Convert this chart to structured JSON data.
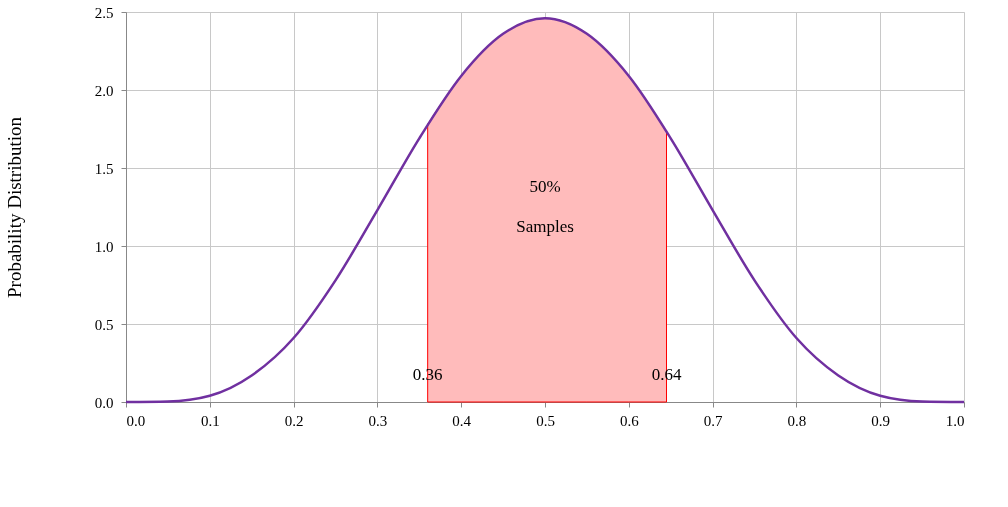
{
  "chart_data": {
    "type": "line",
    "ylabel": "Probability Distribution",
    "x": [
      0,
      0.05,
      0.1,
      0.15,
      0.2,
      0.25,
      0.3,
      0.35,
      0.4,
      0.45,
      0.5,
      0.55,
      0.6,
      0.65,
      0.7,
      0.75,
      0.8,
      0.85,
      0.9,
      0.95,
      1.0
    ],
    "series": [
      {
        "type": "area",
        "color": "#ffbbbb",
        "x": [
          0.36,
          0.4,
          0.45,
          0.5,
          0.55,
          0.6,
          0.645
        ],
        "values": [
          1.78,
          2.09,
          2.36,
          2.46,
          2.36,
          2.09,
          1.73
        ]
      },
      {
        "color": "#7030a0",
        "values": [
          0,
          0.003,
          0.04,
          0.17,
          0.41,
          0.78,
          1.23,
          1.69,
          2.09,
          2.36,
          2.46,
          2.36,
          2.09,
          1.69,
          1.23,
          0.78,
          0.41,
          0.17,
          0.04,
          0.003,
          0
        ]
      }
    ],
    "xlim": [
      0,
      1.0
    ],
    "xticks": [
      {
        "value": 0,
        "label": "0.0"
      },
      0.1,
      0.2,
      0.3,
      0.4,
      0.5,
      0.6,
      0.7,
      0.8,
      0.9,
      {
        "value": 1.0,
        "label": "1.0"
      }
    ],
    "ylim": [
      0,
      2.5
    ],
    "yticks": [
      {
        "value": 0,
        "label": "0.0"
      },
      0.5,
      {
        "value": 1,
        "label": "1.0"
      },
      1.5,
      {
        "value": 2,
        "label": "2.0"
      },
      2.5
    ],
    "grid": true,
    "marker": "none",
    "line_style": "solid",
    "annotations": [
      "50%",
      "Samples",
      {
        "text": "0.36",
        "x": 0.36,
        "y": 0.17
      },
      {
        "text": "0.64",
        "x": 0.645,
        "y": 0.17
      }
    ]
  }
}
